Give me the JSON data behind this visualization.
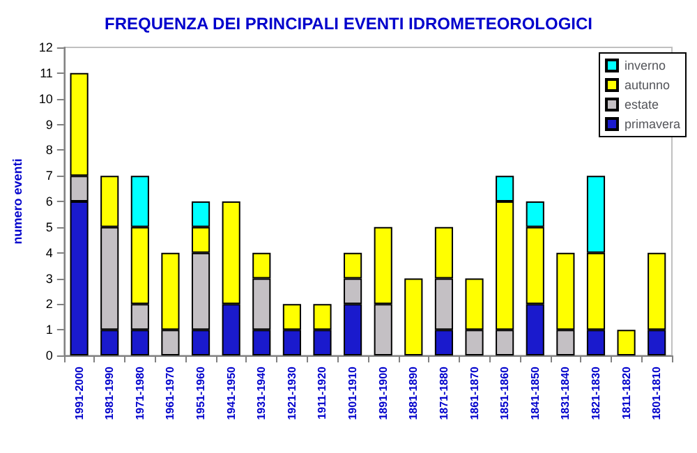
{
  "chart_data": {
    "type": "bar",
    "title": "FREQUENZA DEI PRINCIPALI EVENTI IDROMETEOROLOGICI",
    "ylabel": "numero eventi",
    "categories": [
      "1991-2000",
      "1981-1990",
      "1971-1980",
      "1961-1970",
      "1951-1960",
      "1941-1950",
      "1931-1940",
      "1921-1930",
      "1911-1920",
      "1901-1910",
      "1891-1900",
      "1881-1890",
      "1871-1880",
      "1861-1870",
      "1851-1860",
      "1841-1850",
      "1831-1840",
      "1821-1830",
      "1811-1820",
      "1801-1810"
    ],
    "stacked": true,
    "series": [
      {
        "name": "primavera",
        "color": "#1a1acd",
        "values": [
          6,
          1,
          1,
          0,
          1,
          2,
          1,
          1,
          1,
          2,
          0,
          0,
          1,
          0,
          0,
          2,
          0,
          1,
          0,
          1
        ]
      },
      {
        "name": "estate",
        "color": "#c4c0c4",
        "values": [
          1,
          4,
          1,
          1,
          3,
          0,
          2,
          0,
          0,
          1,
          2,
          0,
          2,
          1,
          1,
          0,
          1,
          0,
          0,
          0
        ]
      },
      {
        "name": "autunno",
        "color": "#ffff00",
        "values": [
          4,
          2,
          3,
          3,
          1,
          4,
          1,
          1,
          1,
          1,
          3,
          3,
          2,
          2,
          5,
          3,
          3,
          3,
          1,
          3
        ]
      },
      {
        "name": "inverno",
        "color": "#00ffff",
        "values": [
          0,
          0,
          2,
          0,
          1,
          0,
          0,
          0,
          0,
          0,
          0,
          0,
          0,
          0,
          1,
          1,
          0,
          3,
          0,
          0
        ]
      }
    ],
    "ylim": [
      0,
      12
    ],
    "yticks": [
      0,
      1,
      2,
      3,
      4,
      5,
      6,
      7,
      8,
      9,
      10,
      11,
      12
    ],
    "grid": false,
    "legend": "top right"
  }
}
